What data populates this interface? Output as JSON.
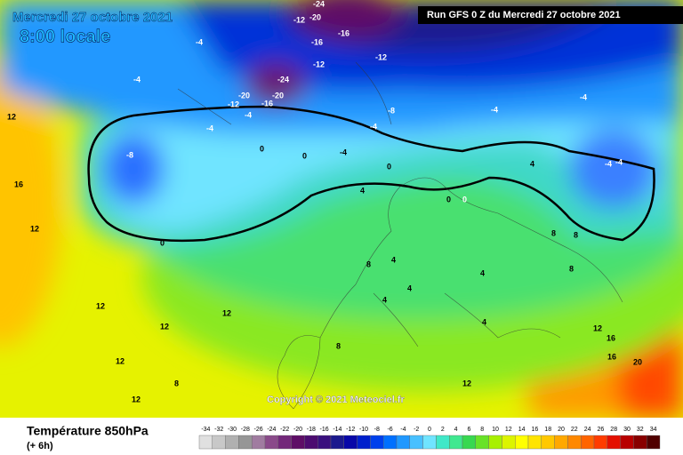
{
  "header": {
    "date": "Mercredi 27 octobre 2021",
    "time": "8:00 locale",
    "run": "Run GFS 0 Z du Mercredi 27 octobre 2021"
  },
  "copyright": "Copyright © 2021 Meteociel.fr",
  "footer": {
    "title": "Température 850hPa",
    "lead": "(+ 6h)"
  },
  "legend": {
    "values": [
      -34,
      -32,
      -30,
      -28,
      -26,
      -24,
      -22,
      -20,
      -18,
      -16,
      -14,
      -12,
      -10,
      -8,
      -6,
      -4,
      -2,
      0,
      2,
      4,
      6,
      8,
      10,
      12,
      14,
      16,
      18,
      20,
      22,
      24,
      26,
      28,
      30,
      32,
      34
    ],
    "colors": [
      "#e0e0e0",
      "#c8c8c8",
      "#b0b0b0",
      "#969696",
      "#a07ca0",
      "#8a4a8a",
      "#73287a",
      "#5e0e66",
      "#4c0c70",
      "#3a107e",
      "#1c1a8e",
      "#0808a8",
      "#0020cc",
      "#0040ec",
      "#0070ff",
      "#2098ff",
      "#48c0ff",
      "#70e4ff",
      "#40e8c8",
      "#40e890",
      "#38d850",
      "#68e228",
      "#a8f000",
      "#dcf400",
      "#ffff00",
      "#ffe400",
      "#ffc800",
      "#ffa800",
      "#ff8800",
      "#ff6400",
      "#ff3c00",
      "#e41000",
      "#b80000",
      "#880000",
      "#500000"
    ]
  },
  "map_labels": [
    -24,
    -20,
    -16,
    -12,
    -16,
    -12,
    -24,
    -20,
    -16,
    -20,
    -12,
    -4,
    -4,
    -12,
    -4,
    -4,
    -8,
    -4,
    -8,
    -4,
    -4,
    0,
    0,
    0,
    -4,
    -4,
    -4,
    0,
    0,
    0,
    4,
    4,
    4,
    4,
    8,
    8,
    8,
    4,
    12,
    12,
    12,
    12,
    12,
    16,
    16,
    20,
    12,
    8,
    8,
    12,
    12,
    4,
    4,
    8,
    12,
    16
  ]
}
